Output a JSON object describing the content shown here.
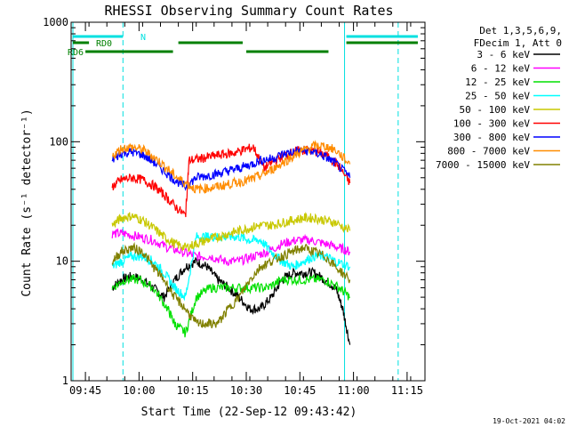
{
  "chart_data": {
    "type": "line",
    "title": "RHESSI Observing Summary Count Rates",
    "xlabel": "Start Time (22-Sep-12 09:43:42)",
    "ylabel": "Count Rate (s⁻¹ detector⁻¹)",
    "y_scale": "log",
    "ylim": [
      1,
      1000
    ],
    "xlim_minutes_after_0943": [
      -2,
      97
    ],
    "x_ticks": [
      {
        "label": "09:45",
        "minute": 2
      },
      {
        "label": "10:00",
        "minute": 17
      },
      {
        "label": "10:15",
        "minute": 32
      },
      {
        "label": "10:30",
        "minute": 47
      },
      {
        "label": "10:45",
        "minute": 62
      },
      {
        "label": "11:00",
        "minute": 77
      },
      {
        "label": "11:15",
        "minute": 92
      }
    ],
    "y_ticks": [
      {
        "label": "1",
        "value": 1
      },
      {
        "label": "10",
        "value": 10
      },
      {
        "label": "100",
        "value": 100
      },
      {
        "label": "1000",
        "value": 1000
      }
    ],
    "legend_header": [
      "Det 1,3,5,6,9,",
      "FDecim 1, Att 0"
    ],
    "legend_position": "right",
    "series": [
      {
        "name": "3 - 6 keV",
        "color": "#000000",
        "x": [
          9.5,
          12,
          15,
          18,
          21,
          24,
          27,
          30,
          33,
          36,
          39,
          42,
          45,
          48,
          51,
          54,
          57,
          60,
          63,
          66,
          69,
          72,
          74,
          76
        ],
        "y": [
          6,
          7,
          7.5,
          7,
          6,
          5,
          7,
          9,
          10,
          9,
          7,
          6,
          5,
          4,
          4,
          5,
          7,
          8,
          8,
          8,
          7,
          6,
          4,
          2
        ]
      },
      {
        "name": "6 - 12 keV",
        "color": "#ff00ff",
        "x": [
          9.5,
          13,
          17,
          21,
          25,
          29,
          33,
          37,
          41,
          45,
          49,
          53,
          57,
          61,
          65,
          69,
          73,
          76
        ],
        "y": [
          17,
          17,
          16,
          15,
          13,
          12,
          11,
          11,
          10,
          10,
          11,
          12,
          14,
          15,
          15,
          14,
          13,
          12
        ]
      },
      {
        "name": "12 - 25 keV",
        "color": "#00e000",
        "x": [
          9.5,
          13,
          17,
          21,
          25,
          27,
          30,
          33,
          37,
          41,
          45,
          49,
          53,
          57,
          61,
          65,
          69,
          73,
          76
        ],
        "y": [
          6,
          7,
          7,
          6,
          4,
          3,
          2.5,
          5,
          6,
          6,
          6,
          6,
          6,
          7,
          7,
          7,
          7,
          6,
          5
        ]
      },
      {
        "name": "25 - 50 keV",
        "color": "#00ffff",
        "x": [
          9.5,
          12,
          15,
          18,
          21,
          24,
          27,
          30,
          33,
          36,
          39,
          42,
          45,
          48,
          51,
          54,
          57,
          60,
          63,
          66,
          69,
          72,
          76
        ],
        "y": [
          9,
          10,
          11,
          11,
          10,
          8,
          6,
          5,
          16,
          16,
          16,
          16,
          16,
          15,
          15,
          12,
          10,
          9,
          10,
          11,
          11,
          10,
          9
        ]
      },
      {
        "name": "50 - 100 keV",
        "color": "#c8c800",
        "x": [
          9.5,
          12,
          15,
          18,
          21,
          24,
          27,
          30,
          33,
          36,
          39,
          42,
          45,
          48,
          51,
          54,
          57,
          60,
          63,
          66,
          69,
          72,
          76
        ],
        "y": [
          20,
          23,
          24,
          22,
          19,
          16,
          14,
          13,
          14,
          15,
          16,
          17,
          18,
          19,
          20,
          20,
          21,
          22,
          23,
          23,
          22,
          21,
          18
        ]
      },
      {
        "name": "100 - 300 keV",
        "color": "#ff0000",
        "x": [
          9.5,
          12,
          15,
          18,
          21,
          24,
          27,
          30,
          31,
          34,
          37,
          40,
          43,
          46,
          49,
          52,
          55,
          58,
          61,
          64,
          67,
          70,
          73,
          76
        ],
        "y": [
          42,
          48,
          50,
          48,
          43,
          36,
          29,
          24,
          70,
          72,
          75,
          78,
          80,
          85,
          90,
          60,
          70,
          78,
          83,
          85,
          82,
          75,
          62,
          45
        ]
      },
      {
        "name": "300 - 800 keV",
        "color": "#0000ff",
        "x": [
          9.5,
          12,
          15,
          18,
          21,
          24,
          27,
          30,
          33,
          36,
          39,
          42,
          45,
          48,
          51,
          54,
          57,
          60,
          63,
          66,
          69,
          72,
          76
        ],
        "y": [
          70,
          80,
          82,
          78,
          68,
          57,
          48,
          42,
          50,
          52,
          54,
          57,
          60,
          64,
          70,
          72,
          78,
          82,
          85,
          82,
          75,
          66,
          50
        ]
      },
      {
        "name": "800 - 7000 keV",
        "color": "#ff8c00",
        "x": [
          9.5,
          12,
          15,
          18,
          21,
          24,
          27,
          30,
          33,
          36,
          39,
          42,
          45,
          48,
          51,
          54,
          57,
          60,
          63,
          66,
          69,
          72,
          76
        ],
        "y": [
          75,
          88,
          90,
          86,
          75,
          63,
          52,
          45,
          40,
          41,
          42,
          44,
          46,
          48,
          52,
          58,
          66,
          75,
          85,
          92,
          92,
          85,
          65
        ]
      },
      {
        "name": "7000 - 15000 keV",
        "color": "#808000",
        "x": [
          9.5,
          12,
          15,
          18,
          21,
          24,
          27,
          30,
          33,
          36,
          39,
          42,
          45,
          48,
          51,
          54,
          57,
          60,
          63,
          66,
          69,
          72,
          76
        ],
        "y": [
          10,
          12,
          13,
          12,
          9,
          7,
          5,
          4,
          3,
          3,
          3,
          4,
          5,
          7,
          9,
          10,
          11,
          12,
          13,
          12,
          11,
          9,
          7
        ]
      }
    ],
    "annotation_bars": [
      {
        "label": "N",
        "color": "#00e0e0",
        "segments": [
          [
            -1.5,
            12.5
          ],
          [
            75,
            95
          ]
        ]
      },
      {
        "label": "RD0",
        "color": "#008000",
        "segments": [
          [
            -1.5,
            3
          ],
          [
            28,
            46
          ],
          [
            75,
            95
          ]
        ]
      },
      {
        "label": "RD6",
        "color": "#008000",
        "segments": [
          [
            2,
            26.5
          ],
          [
            47,
            70
          ]
        ]
      }
    ],
    "vertical_lines": [
      {
        "minute": -1.5,
        "style": "solid",
        "color": "#00e0e0"
      },
      {
        "minute": 12.5,
        "style": "dashed",
        "color": "#00e0e0"
      },
      {
        "minute": 74.5,
        "style": "solid",
        "color": "#00e0e0"
      },
      {
        "minute": 89.5,
        "style": "dashed",
        "color": "#00e0e0"
      }
    ],
    "grid": false
  },
  "footer_timestamp": "19-Oct-2021 04:02"
}
